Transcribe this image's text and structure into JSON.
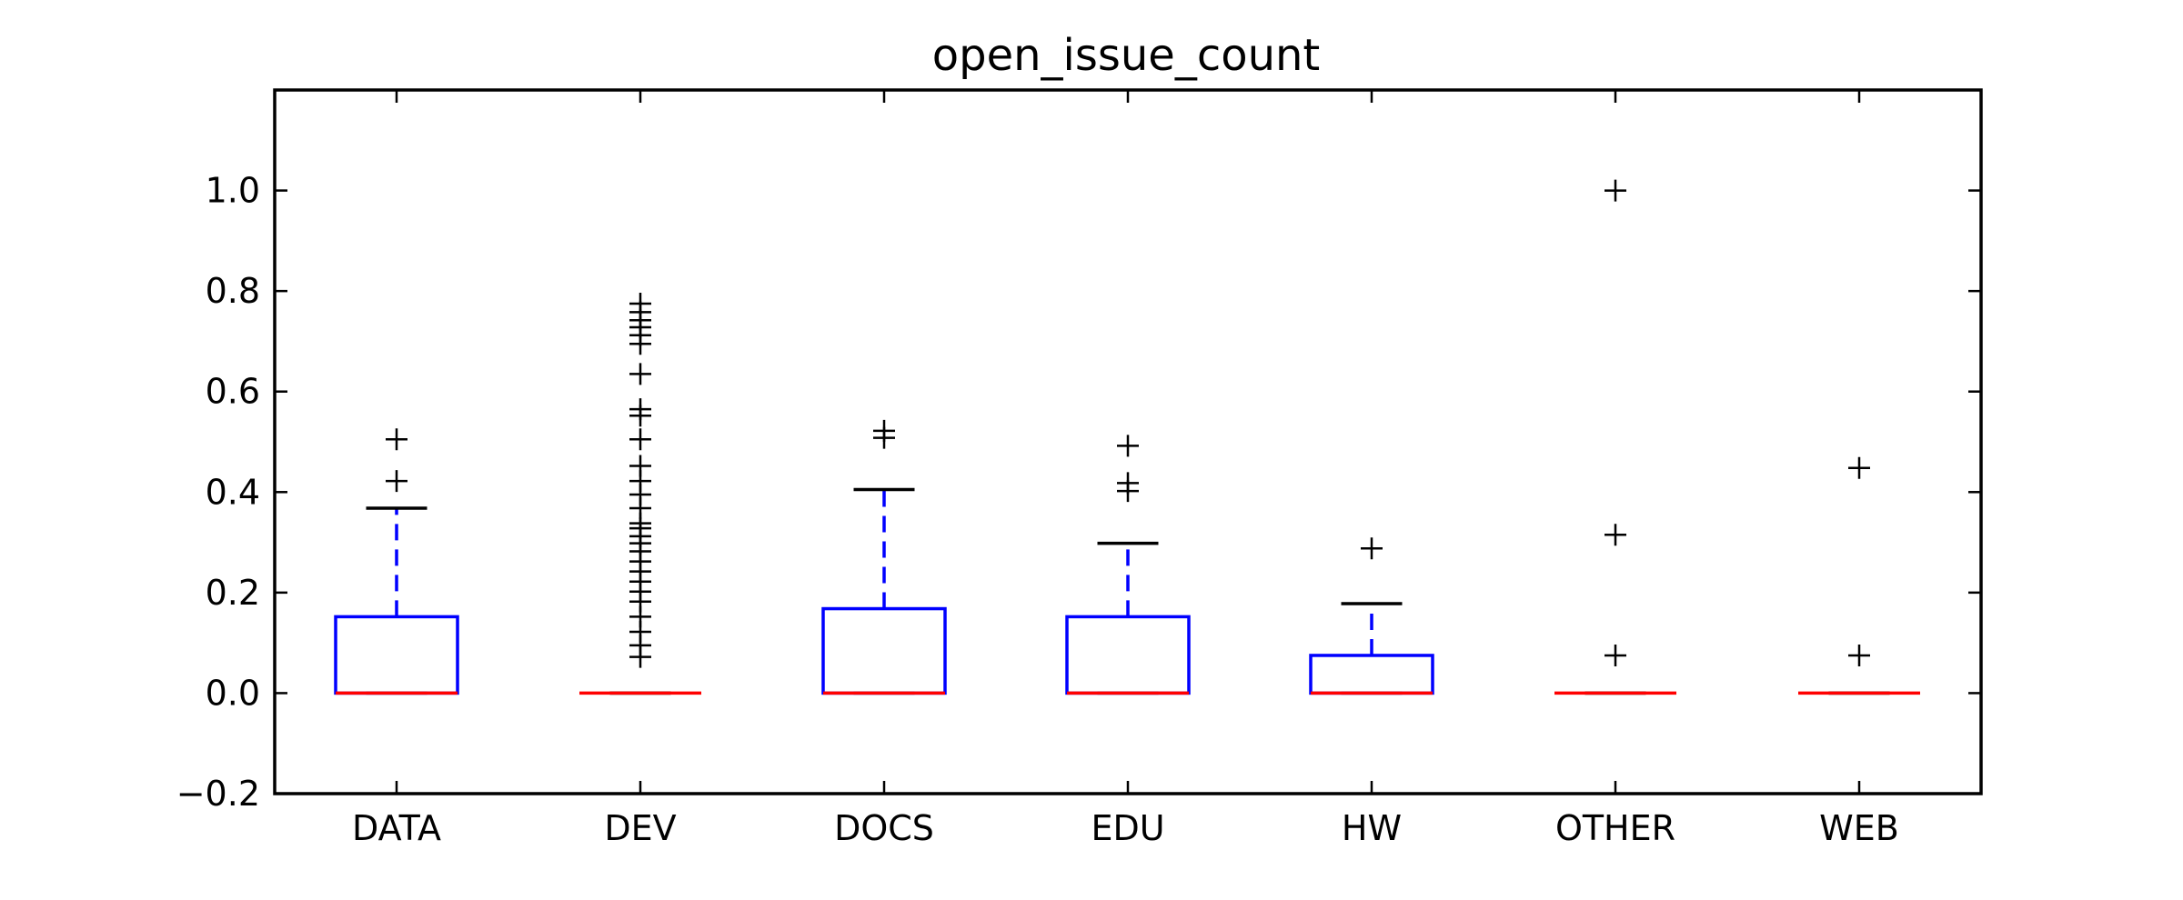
{
  "chart_data": {
    "type": "box",
    "title": "open_issue_count",
    "xlabel": "",
    "ylabel": "",
    "ylim": [
      -0.2,
      1.2
    ],
    "yticks": [
      -0.2,
      0.0,
      0.2,
      0.4,
      0.6,
      0.8,
      1.0
    ],
    "ytick_labels": [
      "−0.2",
      "0.0",
      "0.2",
      "0.4",
      "0.6",
      "0.8",
      "1.0"
    ],
    "grid": false,
    "colors": {
      "box": "#0000ff",
      "median": "#ff0000",
      "whisker": "#0000ff",
      "cap": "#000000",
      "flier": "#000000"
    },
    "categories": [
      "DATA",
      "DEV",
      "DOCS",
      "EDU",
      "HW",
      "OTHER",
      "WEB"
    ],
    "boxes": [
      {
        "category": "DATA",
        "q1": 0.0,
        "median": 0.0,
        "q3": 0.152,
        "whisker_low": 0.0,
        "whisker_high": 0.368,
        "fliers": [
          0.422,
          0.505
        ]
      },
      {
        "category": "DEV",
        "q1": 0.0,
        "median": 0.0,
        "q3": 0.0,
        "whisker_low": 0.0,
        "whisker_high": 0.0,
        "fliers": [
          0.072,
          0.095,
          0.122,
          0.152,
          0.182,
          0.202,
          0.222,
          0.242,
          0.262,
          0.282,
          0.298,
          0.312,
          0.328,
          0.338,
          0.368,
          0.395,
          0.422,
          0.452,
          0.505,
          0.552,
          0.565,
          0.635,
          0.695,
          0.712,
          0.728,
          0.742,
          0.758,
          0.775
        ]
      },
      {
        "category": "DOCS",
        "q1": 0.0,
        "median": 0.0,
        "q3": 0.168,
        "whisker_low": 0.0,
        "whisker_high": 0.405,
        "fliers": [
          0.508,
          0.522
        ]
      },
      {
        "category": "EDU",
        "q1": 0.0,
        "median": 0.0,
        "q3": 0.152,
        "whisker_low": 0.0,
        "whisker_high": 0.298,
        "fliers": [
          0.402,
          0.418,
          0.492
        ]
      },
      {
        "category": "HW",
        "q1": 0.0,
        "median": 0.0,
        "q3": 0.075,
        "whisker_low": 0.0,
        "whisker_high": 0.178,
        "fliers": [
          0.288
        ]
      },
      {
        "category": "OTHER",
        "q1": 0.0,
        "median": 0.0,
        "q3": 0.0,
        "whisker_low": 0.0,
        "whisker_high": 0.0,
        "fliers": [
          0.075,
          0.315,
          1.0
        ]
      },
      {
        "category": "WEB",
        "q1": 0.0,
        "median": 0.0,
        "q3": 0.0,
        "whisker_low": 0.0,
        "whisker_high": 0.0,
        "fliers": [
          0.075,
          0.448
        ]
      }
    ]
  }
}
